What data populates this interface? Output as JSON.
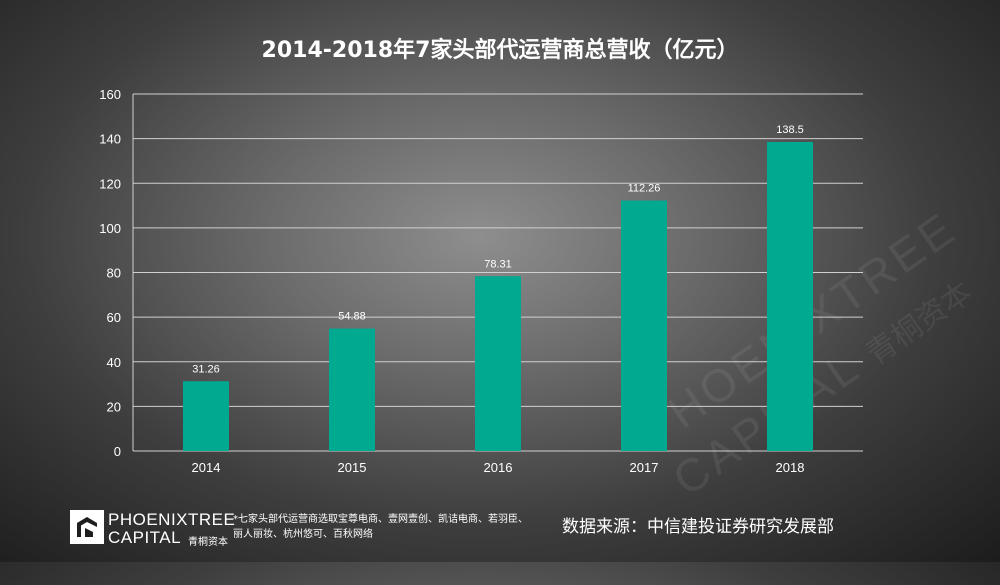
{
  "chart_data": {
    "type": "bar",
    "title": "2014-2018年7家头部代运营商总营收（亿元）",
    "categories": [
      "2014",
      "2015",
      "2016",
      "2017",
      "2018"
    ],
    "values": [
      31.26,
      54.88,
      78.31,
      112.26,
      138.5
    ],
    "data_labels": [
      "31.26",
      "54.88",
      "78.31",
      "112.26",
      "138.5"
    ],
    "ylim": [
      0,
      160
    ],
    "yticks": [
      "0",
      "20",
      "40",
      "60",
      "80",
      "100",
      "120",
      "140",
      "160"
    ],
    "grid": true,
    "bar_color": "#00a98f"
  },
  "footer": {
    "logo_line1": "PHOENIXTREE",
    "logo_line2": "CAPITAL",
    "logo_cn": "青桐资本",
    "note": "*七家头部代运营商选取宝尊电商、壹网壹创、凯诘电商、若羽臣、丽人丽妆、杭州悠可、百秋网络",
    "source": "数据来源：中信建投证券研究发展部"
  },
  "watermark": {
    "line1": "PHOENIXTREE",
    "line2": "CAPITAL",
    "cn": "青桐资本"
  }
}
